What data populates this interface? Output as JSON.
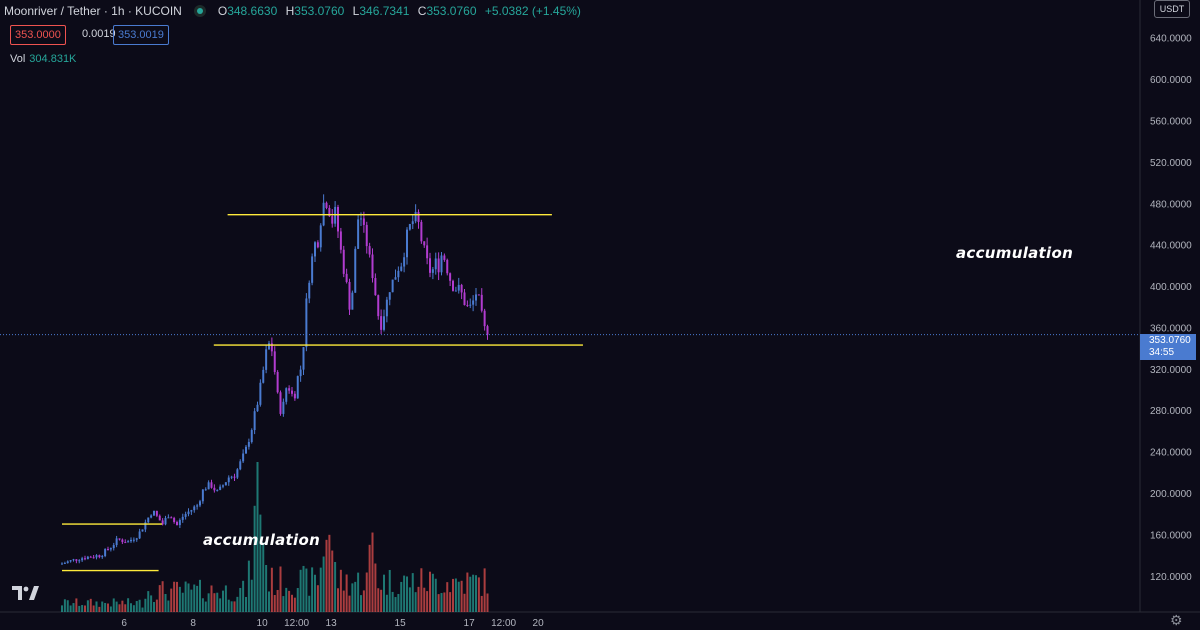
{
  "header": {
    "symbol": "Moonriver / Tether · 1h · KUCOIN",
    "o_label": "O",
    "o_value": "348.6630",
    "h_label": "H",
    "h_value": "353.0760",
    "l_label": "L",
    "l_value": "346.7341",
    "c_label": "C",
    "c_value": "353.0760",
    "change": "+5.0382 (+1.45%)",
    "bid": "353.0000",
    "spread": "0.0019",
    "ask": "353.0019",
    "vol_label": "Vol",
    "vol_value": "304.831K"
  },
  "price_axis": {
    "unit": "USDT",
    "current_price": "353.0760",
    "countdown": "34:55"
  },
  "time_axis": {
    "labels": [
      {
        "t": 0.9,
        "text": "6"
      },
      {
        "t": 1.9,
        "text": "8"
      },
      {
        "t": 2.9,
        "text": "10"
      },
      {
        "t": 3.4,
        "text": "12:00"
      },
      {
        "t": 3.9,
        "text": "13"
      },
      {
        "t": 4.9,
        "text": "15"
      },
      {
        "t": 5.9,
        "text": "17"
      },
      {
        "t": 6.4,
        "text": "12:00"
      },
      {
        "t": 6.9,
        "text": "20"
      }
    ]
  },
  "annotations": {
    "top": "accumulation",
    "bottom": "accumulation"
  },
  "colors": {
    "background": "#0c0b18",
    "candle_up": "#4a7bd0",
    "candle_down": "#b23cd0",
    "vol_up": "#26a69a",
    "vol_down": "#ef5350",
    "level_line": "#ffeb3b",
    "current_price": "#4a7bd0"
  },
  "chart_data": {
    "type": "candlestick",
    "title": "",
    "xlabel": "",
    "ylabel": "USDT",
    "ylim": [
      85,
      660
    ],
    "y_ticks": [
      120,
      160,
      200,
      240,
      280,
      320,
      360,
      400,
      440,
      480,
      520,
      560,
      600,
      640
    ],
    "x_unit": "days since the first day label",
    "series": [
      {
        "name": "price (approx. path of close, hourly candles)",
        "points": [
          [
            0.0,
            131
          ],
          [
            0.3,
            137
          ],
          [
            0.5,
            139
          ],
          [
            0.6,
            140
          ],
          [
            0.75,
            148
          ],
          [
            0.85,
            155
          ],
          [
            1.0,
            153
          ],
          [
            1.15,
            160
          ],
          [
            1.35,
            183
          ],
          [
            1.5,
            170
          ],
          [
            1.6,
            181
          ],
          [
            1.7,
            168
          ],
          [
            1.8,
            178
          ],
          [
            2.0,
            188
          ],
          [
            2.1,
            205
          ],
          [
            2.2,
            208
          ],
          [
            2.3,
            200
          ],
          [
            2.45,
            215
          ],
          [
            2.55,
            218
          ],
          [
            2.6,
            225
          ],
          [
            2.7,
            240
          ],
          [
            2.8,
            265
          ],
          [
            2.9,
            295
          ],
          [
            3.0,
            335
          ],
          [
            3.05,
            345
          ],
          [
            3.1,
            335
          ],
          [
            3.15,
            300
          ],
          [
            3.2,
            280
          ],
          [
            3.25,
            285
          ],
          [
            3.3,
            305
          ],
          [
            3.35,
            300
          ],
          [
            3.4,
            290
          ],
          [
            3.45,
            310
          ],
          [
            3.5,
            320
          ],
          [
            3.55,
            350
          ],
          [
            3.6,
            400
          ],
          [
            3.65,
            420
          ],
          [
            3.7,
            440
          ],
          [
            3.75,
            445
          ],
          [
            3.8,
            470
          ],
          [
            3.85,
            485
          ],
          [
            3.9,
            480
          ],
          [
            3.95,
            462
          ],
          [
            4.0,
            470
          ],
          [
            4.05,
            450
          ],
          [
            4.1,
            425
          ],
          [
            4.15,
            410
          ],
          [
            4.2,
            380
          ],
          [
            4.25,
            395
          ],
          [
            4.3,
            440
          ],
          [
            4.35,
            478
          ],
          [
            4.4,
            455
          ],
          [
            4.45,
            445
          ],
          [
            4.5,
            425
          ],
          [
            4.55,
            410
          ],
          [
            4.6,
            385
          ],
          [
            4.65,
            360
          ],
          [
            4.7,
            372
          ],
          [
            4.75,
            385
          ],
          [
            4.8,
            402
          ],
          [
            4.85,
            405
          ],
          [
            4.9,
            418
          ],
          [
            4.95,
            420
          ],
          [
            5.0,
            435
          ],
          [
            5.05,
            450
          ],
          [
            5.1,
            460
          ],
          [
            5.15,
            465
          ],
          [
            5.2,
            462
          ],
          [
            5.25,
            445
          ],
          [
            5.3,
            430
          ],
          [
            5.35,
            418
          ],
          [
            5.4,
            412
          ],
          [
            5.45,
            422
          ],
          [
            5.5,
            420
          ],
          [
            5.55,
            432
          ],
          [
            5.6,
            425
          ],
          [
            5.65,
            410
          ],
          [
            5.7,
            402
          ],
          [
            5.75,
            398
          ],
          [
            5.8,
            396
          ],
          [
            5.85,
            390
          ],
          [
            5.9,
            380
          ],
          [
            5.95,
            378
          ],
          [
            6.0,
            385
          ],
          [
            6.05,
            395
          ],
          [
            6.1,
            380
          ],
          [
            6.15,
            360
          ],
          [
            6.2,
            353
          ]
        ]
      }
    ],
    "volume": {
      "max_visible": 240,
      "note": "volume histogram drawn in bottom pane; spikes near day 2.85 and 3.85"
    },
    "horizontal_levels": [
      {
        "price": 469,
        "from_t": 2.4,
        "to_t": 7.1
      },
      {
        "price": 343,
        "from_t": 2.2,
        "to_t": 7.55
      },
      {
        "price": 170,
        "from_t": 0.0,
        "to_t": 1.45
      },
      {
        "price": 125,
        "from_t": 0.0,
        "to_t": 1.4
      }
    ]
  }
}
